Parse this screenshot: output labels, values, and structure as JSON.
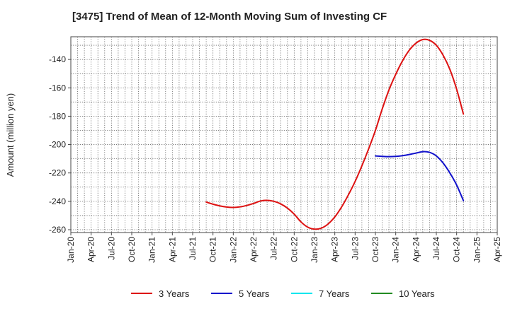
{
  "chart_data": {
    "type": "line",
    "title": "[3475]  Trend of Mean of 12-Month Moving Sum of Investing CF",
    "xlabel": "",
    "ylabel": "Amount (million yen)",
    "x_ticks": [
      "Jan-20",
      "Apr-20",
      "Jul-20",
      "Oct-20",
      "Jan-21",
      "Apr-21",
      "Jul-21",
      "Oct-21",
      "Jan-22",
      "Apr-22",
      "Jul-22",
      "Oct-22",
      "Jan-23",
      "Apr-23",
      "Jul-23",
      "Oct-23",
      "Jan-24",
      "Apr-24",
      "Jul-24",
      "Oct-24",
      "Jan-25",
      "Apr-25"
    ],
    "x_range": [
      "2020-01",
      "2025-04"
    ],
    "y_ticks": [
      -140,
      -160,
      -180,
      -200,
      -220,
      -240,
      -260
    ],
    "ylim": [
      -262,
      -124
    ],
    "grid": true,
    "legend_position": "bottom",
    "series": [
      {
        "name": "3 Years",
        "color": "#dd1111",
        "points": [
          [
            "2021-09",
            -240.5
          ],
          [
            "2021-10",
            -242.0
          ],
          [
            "2021-11",
            -243.2
          ],
          [
            "2021-12",
            -244.0
          ],
          [
            "2022-01",
            -244.3
          ],
          [
            "2022-02",
            -243.9
          ],
          [
            "2022-03",
            -242.9
          ],
          [
            "2022-04",
            -241.5
          ],
          [
            "2022-05",
            -239.8
          ],
          [
            "2022-06",
            -239.3
          ],
          [
            "2022-07",
            -240.0
          ],
          [
            "2022-08",
            -241.8
          ],
          [
            "2022-09",
            -244.8
          ],
          [
            "2022-10",
            -249.0
          ],
          [
            "2022-11",
            -254.5
          ],
          [
            "2022-12",
            -258.2
          ],
          [
            "2023-01",
            -259.6
          ],
          [
            "2023-02",
            -258.9
          ],
          [
            "2023-03",
            -256.0
          ],
          [
            "2023-04",
            -251.0
          ],
          [
            "2023-05",
            -244.0
          ],
          [
            "2023-06",
            -235.5
          ],
          [
            "2023-07",
            -226.0
          ],
          [
            "2023-08",
            -215.0
          ],
          [
            "2023-09",
            -203.0
          ],
          [
            "2023-10",
            -190.0
          ],
          [
            "2023-11",
            -175.0
          ],
          [
            "2023-12",
            -161.5
          ],
          [
            "2024-01",
            -150.5
          ],
          [
            "2024-02",
            -141.0
          ],
          [
            "2024-03",
            -133.5
          ],
          [
            "2024-04",
            -128.5
          ],
          [
            "2024-05",
            -126.0
          ],
          [
            "2024-06",
            -126.5
          ],
          [
            "2024-07",
            -130.0
          ],
          [
            "2024-08",
            -137.0
          ],
          [
            "2024-09",
            -147.0
          ],
          [
            "2024-10",
            -161.0
          ],
          [
            "2024-11",
            -178.5
          ]
        ]
      },
      {
        "name": "5 Years",
        "color": "#1111cc",
        "points": [
          [
            "2023-10",
            -208.0
          ],
          [
            "2023-11",
            -208.3
          ],
          [
            "2023-12",
            -208.5
          ],
          [
            "2024-01",
            -208.3
          ],
          [
            "2024-02",
            -207.8
          ],
          [
            "2024-03",
            -207.0
          ],
          [
            "2024-04",
            -206.0
          ],
          [
            "2024-05",
            -205.0
          ],
          [
            "2024-06",
            -205.5
          ],
          [
            "2024-07",
            -208.0
          ],
          [
            "2024-08",
            -213.0
          ],
          [
            "2024-09",
            -220.0
          ],
          [
            "2024-10",
            -228.5
          ],
          [
            "2024-11",
            -239.5
          ]
        ]
      },
      {
        "name": "7 Years",
        "color": "#00e5ee",
        "points": []
      },
      {
        "name": "10 Years",
        "color": "#228b22",
        "points": []
      }
    ]
  }
}
